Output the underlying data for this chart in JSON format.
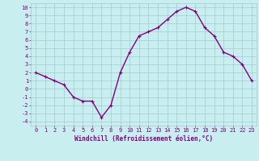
{
  "x": [
    0,
    1,
    2,
    3,
    4,
    5,
    6,
    7,
    8,
    9,
    10,
    11,
    12,
    13,
    14,
    15,
    16,
    17,
    18,
    19,
    20,
    21,
    22,
    23
  ],
  "y": [
    2.0,
    1.5,
    1.0,
    0.5,
    -1.0,
    -1.5,
    -1.5,
    -3.5,
    -2.0,
    2.0,
    4.5,
    6.5,
    7.0,
    7.5,
    8.5,
    9.5,
    10.0,
    9.5,
    7.5,
    6.5,
    4.5,
    4.0,
    3.0,
    1.0
  ],
  "line_color": "#800080",
  "marker": "+",
  "marker_size": 3,
  "linewidth": 1.0,
  "bg_color": "#c8eef0",
  "grid_color": "#a0ccd0",
  "xlabel": "Windchill (Refroidissement éolien,°C)",
  "xlim": [
    -0.5,
    23.5
  ],
  "ylim": [
    -4.5,
    10.5
  ],
  "yticks": [
    -4,
    -3,
    -2,
    -1,
    0,
    1,
    2,
    3,
    4,
    5,
    6,
    7,
    8,
    9,
    10
  ],
  "xticks": [
    0,
    1,
    2,
    3,
    4,
    5,
    6,
    7,
    8,
    9,
    10,
    11,
    12,
    13,
    14,
    15,
    16,
    17,
    18,
    19,
    20,
    21,
    22,
    23
  ],
  "tick_color": "#800080",
  "label_color": "#800080",
  "tick_fontsize": 5.0,
  "xlabel_fontsize": 5.5
}
